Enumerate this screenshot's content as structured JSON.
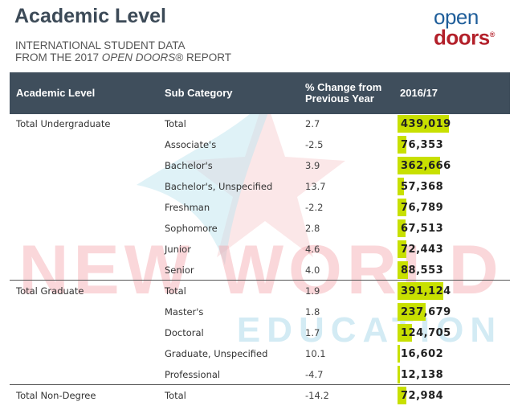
{
  "header": {
    "title": "Academic Level",
    "subtitle_line1": "INTERNATIONAL STUDENT DATA",
    "subtitle_line2_pre": "FROM THE 2017 ",
    "subtitle_line2_em": "OPEN DOORS",
    "subtitle_line2_post": "® REPORT"
  },
  "logo": {
    "line1": "open",
    "line2": "doors",
    "mark": "®"
  },
  "watermark": {
    "line1": "NEW WORLD",
    "line2": "EDUCATION"
  },
  "table": {
    "columns": {
      "level": "Academic Level",
      "sub": "Sub Category",
      "pct": "% Change from Previous Year",
      "year": "2016/17"
    },
    "max_value": 439019,
    "rows": [
      {
        "level": "Total Undergraduate",
        "sub": "Total",
        "pct": "2.7",
        "value": "439,019",
        "num": 439019
      },
      {
        "level": "",
        "sub": "Associate's",
        "pct": "-2.5",
        "value": "76,353",
        "num": 76353
      },
      {
        "level": "",
        "sub": "Bachelor's",
        "pct": "3.9",
        "value": "362,666",
        "num": 362666
      },
      {
        "level": "",
        "sub": "Bachelor's, Unspecified",
        "pct": "13.7",
        "value": "57,368",
        "num": 57368
      },
      {
        "level": "",
        "sub": "Freshman",
        "pct": "-2.2",
        "value": "76,789",
        "num": 76789
      },
      {
        "level": "",
        "sub": "Sophomore",
        "pct": "2.8",
        "value": "67,513",
        "num": 67513
      },
      {
        "level": "",
        "sub": "Junior",
        "pct": "4.6",
        "value": "72,443",
        "num": 72443
      },
      {
        "level": "",
        "sub": "Senior",
        "pct": "4.0",
        "value": "88,553",
        "num": 88553
      },
      {
        "level": "Total Graduate",
        "sub": "Total",
        "pct": "1.9",
        "value": "391,124",
        "num": 391124
      },
      {
        "level": "",
        "sub": "Master's",
        "pct": "1.8",
        "value": "237,679",
        "num": 237679
      },
      {
        "level": "",
        "sub": "Doctoral",
        "pct": "1.7",
        "value": "124,705",
        "num": 124705
      },
      {
        "level": "",
        "sub": "Graduate, Unspecified",
        "pct": "10.1",
        "value": "16,602",
        "num": 16602
      },
      {
        "level": "",
        "sub": "Professional",
        "pct": "-4.7",
        "value": "12,138",
        "num": 12138
      },
      {
        "level": "Total Non-Degree",
        "sub": "Total",
        "pct": "-14.2",
        "value": "72,984",
        "num": 72984
      }
    ]
  },
  "colors": {
    "header_bg": "#3f4e5c",
    "highlight": "#c8e000",
    "logo_blue": "#1f5e9a",
    "logo_red": "#b3202a"
  }
}
